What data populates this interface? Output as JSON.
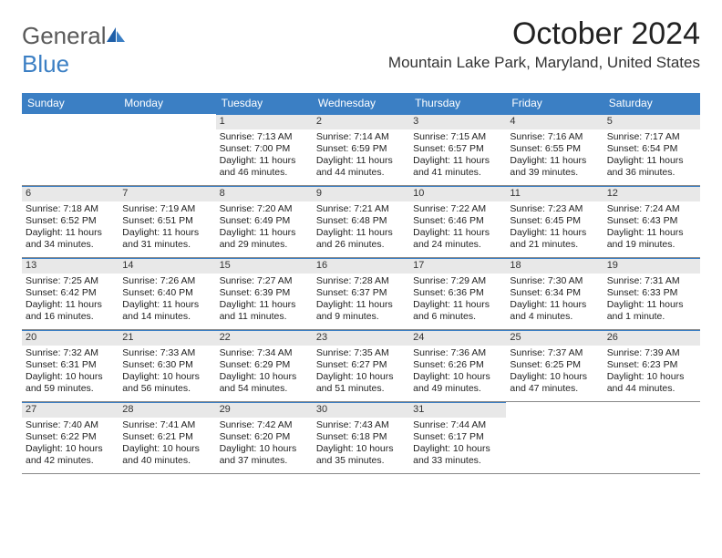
{
  "brand": {
    "word1": "General",
    "word2": "Blue"
  },
  "title": "October 2024",
  "location": "Mountain Lake Park, Maryland, United States",
  "colors": {
    "header_bg": "#3b7fc4",
    "header_text": "#ffffff",
    "daynum_bg": "#e8e8e8",
    "rule": "#888888",
    "accent_rule": "#3b7fc4",
    "page_bg": "#ffffff"
  },
  "day_names": [
    "Sunday",
    "Monday",
    "Tuesday",
    "Wednesday",
    "Thursday",
    "Friday",
    "Saturday"
  ],
  "weeks": [
    [
      {
        "empty": true
      },
      {
        "empty": true
      },
      {
        "n": "1",
        "sr": "Sunrise: 7:13 AM",
        "ss": "Sunset: 7:00 PM",
        "dl": "Daylight: 11 hours and 46 minutes."
      },
      {
        "n": "2",
        "sr": "Sunrise: 7:14 AM",
        "ss": "Sunset: 6:59 PM",
        "dl": "Daylight: 11 hours and 44 minutes."
      },
      {
        "n": "3",
        "sr": "Sunrise: 7:15 AM",
        "ss": "Sunset: 6:57 PM",
        "dl": "Daylight: 11 hours and 41 minutes."
      },
      {
        "n": "4",
        "sr": "Sunrise: 7:16 AM",
        "ss": "Sunset: 6:55 PM",
        "dl": "Daylight: 11 hours and 39 minutes."
      },
      {
        "n": "5",
        "sr": "Sunrise: 7:17 AM",
        "ss": "Sunset: 6:54 PM",
        "dl": "Daylight: 11 hours and 36 minutes."
      }
    ],
    [
      {
        "n": "6",
        "sr": "Sunrise: 7:18 AM",
        "ss": "Sunset: 6:52 PM",
        "dl": "Daylight: 11 hours and 34 minutes."
      },
      {
        "n": "7",
        "sr": "Sunrise: 7:19 AM",
        "ss": "Sunset: 6:51 PM",
        "dl": "Daylight: 11 hours and 31 minutes."
      },
      {
        "n": "8",
        "sr": "Sunrise: 7:20 AM",
        "ss": "Sunset: 6:49 PM",
        "dl": "Daylight: 11 hours and 29 minutes."
      },
      {
        "n": "9",
        "sr": "Sunrise: 7:21 AM",
        "ss": "Sunset: 6:48 PM",
        "dl": "Daylight: 11 hours and 26 minutes."
      },
      {
        "n": "10",
        "sr": "Sunrise: 7:22 AM",
        "ss": "Sunset: 6:46 PM",
        "dl": "Daylight: 11 hours and 24 minutes."
      },
      {
        "n": "11",
        "sr": "Sunrise: 7:23 AM",
        "ss": "Sunset: 6:45 PM",
        "dl": "Daylight: 11 hours and 21 minutes."
      },
      {
        "n": "12",
        "sr": "Sunrise: 7:24 AM",
        "ss": "Sunset: 6:43 PM",
        "dl": "Daylight: 11 hours and 19 minutes."
      }
    ],
    [
      {
        "n": "13",
        "sr": "Sunrise: 7:25 AM",
        "ss": "Sunset: 6:42 PM",
        "dl": "Daylight: 11 hours and 16 minutes."
      },
      {
        "n": "14",
        "sr": "Sunrise: 7:26 AM",
        "ss": "Sunset: 6:40 PM",
        "dl": "Daylight: 11 hours and 14 minutes."
      },
      {
        "n": "15",
        "sr": "Sunrise: 7:27 AM",
        "ss": "Sunset: 6:39 PM",
        "dl": "Daylight: 11 hours and 11 minutes."
      },
      {
        "n": "16",
        "sr": "Sunrise: 7:28 AM",
        "ss": "Sunset: 6:37 PM",
        "dl": "Daylight: 11 hours and 9 minutes."
      },
      {
        "n": "17",
        "sr": "Sunrise: 7:29 AM",
        "ss": "Sunset: 6:36 PM",
        "dl": "Daylight: 11 hours and 6 minutes."
      },
      {
        "n": "18",
        "sr": "Sunrise: 7:30 AM",
        "ss": "Sunset: 6:34 PM",
        "dl": "Daylight: 11 hours and 4 minutes."
      },
      {
        "n": "19",
        "sr": "Sunrise: 7:31 AM",
        "ss": "Sunset: 6:33 PM",
        "dl": "Daylight: 11 hours and 1 minute."
      }
    ],
    [
      {
        "n": "20",
        "sr": "Sunrise: 7:32 AM",
        "ss": "Sunset: 6:31 PM",
        "dl": "Daylight: 10 hours and 59 minutes."
      },
      {
        "n": "21",
        "sr": "Sunrise: 7:33 AM",
        "ss": "Sunset: 6:30 PM",
        "dl": "Daylight: 10 hours and 56 minutes."
      },
      {
        "n": "22",
        "sr": "Sunrise: 7:34 AM",
        "ss": "Sunset: 6:29 PM",
        "dl": "Daylight: 10 hours and 54 minutes."
      },
      {
        "n": "23",
        "sr": "Sunrise: 7:35 AM",
        "ss": "Sunset: 6:27 PM",
        "dl": "Daylight: 10 hours and 51 minutes."
      },
      {
        "n": "24",
        "sr": "Sunrise: 7:36 AM",
        "ss": "Sunset: 6:26 PM",
        "dl": "Daylight: 10 hours and 49 minutes."
      },
      {
        "n": "25",
        "sr": "Sunrise: 7:37 AM",
        "ss": "Sunset: 6:25 PM",
        "dl": "Daylight: 10 hours and 47 minutes."
      },
      {
        "n": "26",
        "sr": "Sunrise: 7:39 AM",
        "ss": "Sunset: 6:23 PM",
        "dl": "Daylight: 10 hours and 44 minutes."
      }
    ],
    [
      {
        "n": "27",
        "sr": "Sunrise: 7:40 AM",
        "ss": "Sunset: 6:22 PM",
        "dl": "Daylight: 10 hours and 42 minutes."
      },
      {
        "n": "28",
        "sr": "Sunrise: 7:41 AM",
        "ss": "Sunset: 6:21 PM",
        "dl": "Daylight: 10 hours and 40 minutes."
      },
      {
        "n": "29",
        "sr": "Sunrise: 7:42 AM",
        "ss": "Sunset: 6:20 PM",
        "dl": "Daylight: 10 hours and 37 minutes."
      },
      {
        "n": "30",
        "sr": "Sunrise: 7:43 AM",
        "ss": "Sunset: 6:18 PM",
        "dl": "Daylight: 10 hours and 35 minutes."
      },
      {
        "n": "31",
        "sr": "Sunrise: 7:44 AM",
        "ss": "Sunset: 6:17 PM",
        "dl": "Daylight: 10 hours and 33 minutes."
      },
      {
        "empty": true
      },
      {
        "empty": true
      }
    ]
  ]
}
